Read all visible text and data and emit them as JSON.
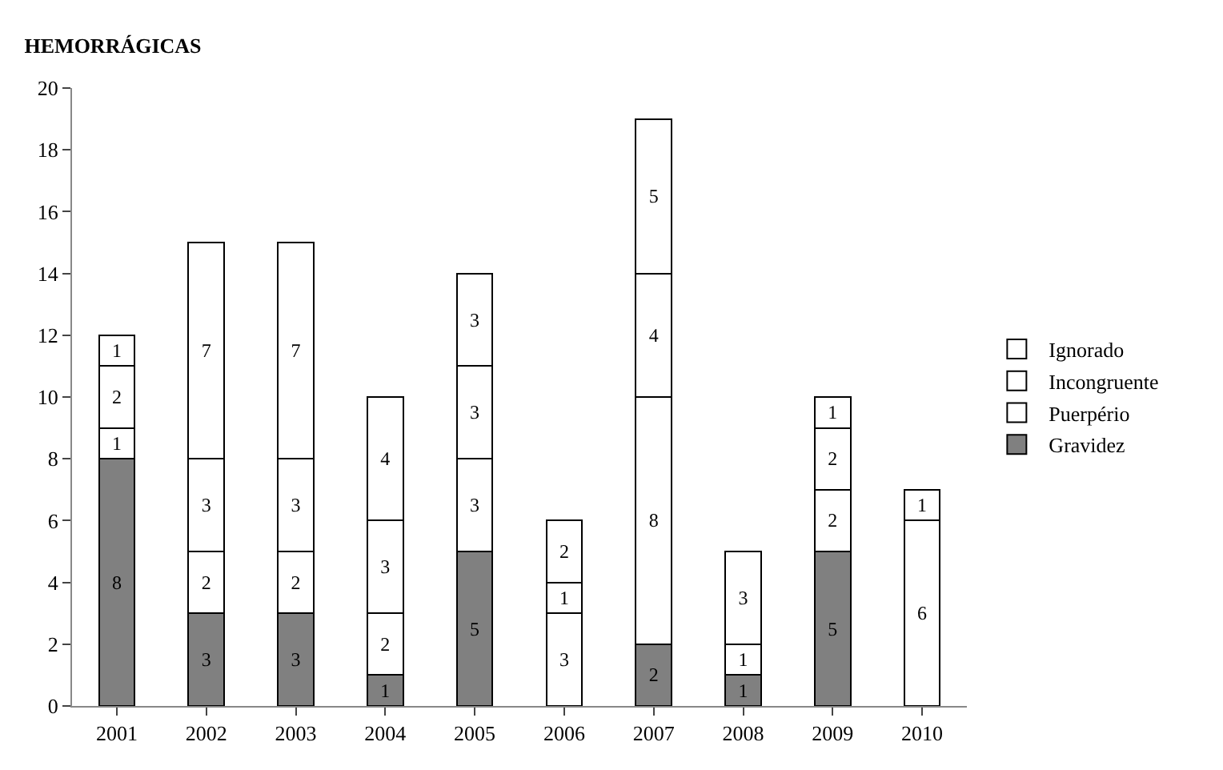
{
  "chart_data": {
    "type": "bar",
    "title": "HEMORRÁGICAS",
    "stacked": true,
    "data_labels": true,
    "legend": "right",
    "categories": [
      "2001",
      "2002",
      "2003",
      "2004",
      "2005",
      "2006",
      "2007",
      "2008",
      "2009",
      "2010"
    ],
    "ylim": [
      0,
      20
    ],
    "yticks": [
      0,
      2,
      4,
      6,
      8,
      10,
      12,
      14,
      16,
      18,
      20
    ],
    "series": [
      {
        "name": "Gravidez",
        "color": "#808080",
        "values": [
          8,
          3,
          3,
          1,
          5,
          null,
          2,
          1,
          5,
          null
        ]
      },
      {
        "name": "Puerpério",
        "color": "#ffffff",
        "values": [
          1,
          2,
          2,
          2,
          3,
          3,
          8,
          1,
          2,
          6
        ]
      },
      {
        "name": "Incongruente",
        "color": "#ffffff",
        "values": [
          2,
          3,
          3,
          3,
          3,
          1,
          4,
          3,
          2,
          null
        ]
      },
      {
        "name": "Ignorado",
        "color": "#ffffff",
        "values": [
          1,
          7,
          7,
          4,
          3,
          2,
          5,
          null,
          1,
          1
        ]
      }
    ]
  }
}
